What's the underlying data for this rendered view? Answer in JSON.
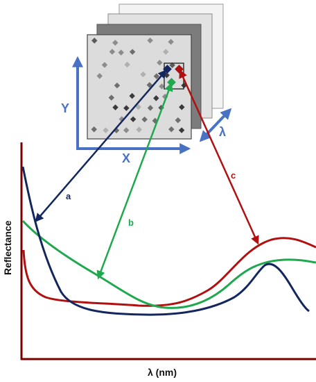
{
  "labels": {
    "y_axis": "Y",
    "x_axis": "X",
    "lambda": "λ",
    "reflectance": "Reflectance",
    "wavelength": "λ (nm)",
    "arrow_a": "a",
    "arrow_b": "b",
    "arrow_c": "c"
  },
  "colors": {
    "curve_a": "#13275e",
    "curve_b": "#1fa84e",
    "curve_c": "#b01010",
    "axis_blue": "#4a72c4",
    "plot_axis": "#7a0000",
    "cube_gray": "#dcdcdc"
  }
}
